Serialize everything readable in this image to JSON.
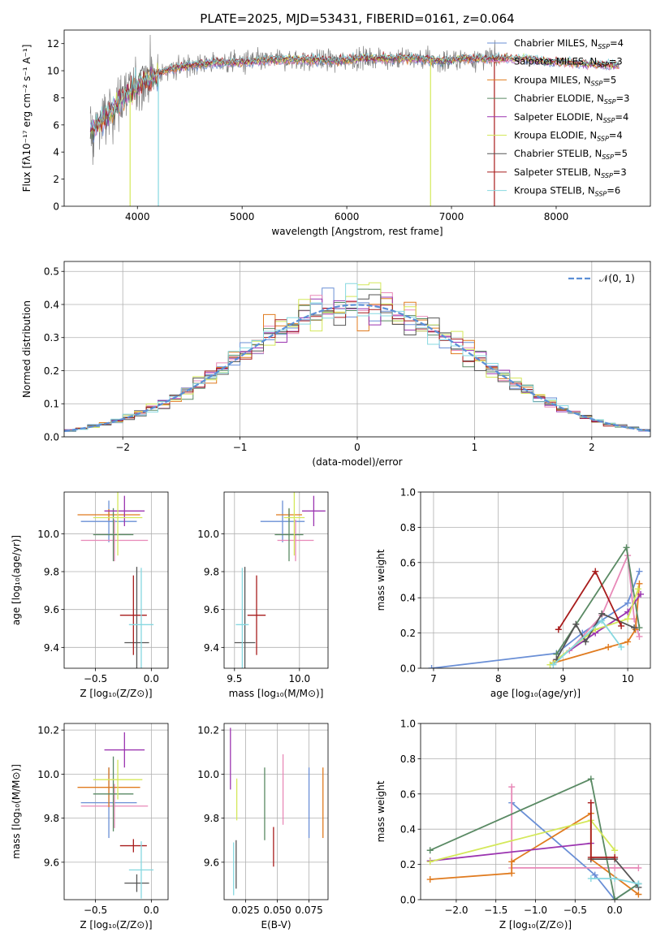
{
  "colors": {
    "chabrier_miles": "#6a8fd6",
    "salpeter_miles": "#e889b8",
    "kroupa_miles": "#e07b1f",
    "chabrier_elodie": "#5a8a64",
    "salpeter_elodie": "#9b34b0",
    "kroupa_elodie": "#d4e85a",
    "chabrier_stelib": "#555555",
    "salpeter_stelib": "#a81c1c",
    "kroupa_stelib": "#86d8e0",
    "spectrum": "#808080",
    "gaussian": "#5b8fd6"
  },
  "chart_data": [
    {
      "id": "spectrum",
      "type": "line",
      "title": "PLATE=2025, MJD=53431, FIBERID=0161, z=0.064",
      "xlabel": "wavelength [Angstrom, rest frame]",
      "ylabel": "Flux [fλ10⁻¹⁷ erg cm⁻² s⁻¹ A⁻¹]",
      "xlim": [
        3300,
        8900
      ],
      "ylim": [
        0,
        13
      ],
      "xticks": [
        4000,
        5000,
        6000,
        7000,
        8000
      ],
      "yticks": [
        0,
        2,
        4,
        6,
        8,
        10,
        12
      ],
      "grid": false,
      "legend_position": "right",
      "legend": [
        {
          "key": "chabrier_miles",
          "label": "Chabrier MILES, N",
          "sub": "SSP",
          "suffix": "=4"
        },
        {
          "key": "salpeter_miles",
          "label": "Salpeter MILES, N",
          "sub": "SSP",
          "suffix": "=3"
        },
        {
          "key": "kroupa_miles",
          "label": "Kroupa MILES, N",
          "sub": "SSP",
          "suffix": "=5"
        },
        {
          "key": "chabrier_elodie",
          "label": "Chabrier ELODIE, N",
          "sub": "SSP",
          "suffix": "=3"
        },
        {
          "key": "salpeter_elodie",
          "label": "Salpeter ELODIE, N",
          "sub": "SSP",
          "suffix": "=4"
        },
        {
          "key": "kroupa_elodie",
          "label": "Kroupa ELODIE, N",
          "sub": "SSP",
          "suffix": "=4"
        },
        {
          "key": "chabrier_stelib",
          "label": "Chabrier STELIB, N",
          "sub": "SSP",
          "suffix": "=5"
        },
        {
          "key": "salpeter_stelib",
          "label": "Salpeter STELIB, N",
          "sub": "SSP",
          "suffix": "=3"
        },
        {
          "key": "kroupa_stelib",
          "label": "Kroupa STELIB, N",
          "sub": "SSP",
          "suffix": "=6"
        }
      ],
      "continuum": {
        "x": [
          3550,
          3650,
          3750,
          3850,
          3950,
          4050,
          4150,
          4300,
          4500,
          4700,
          4900,
          5100,
          5300,
          5500,
          5700,
          5900,
          6100,
          6300,
          6500,
          6700,
          6900,
          7100,
          7300,
          7500,
          7700,
          7900,
          8100,
          8300,
          8500,
          8600
        ],
        "y": [
          5.5,
          6.3,
          7.0,
          7.9,
          8.6,
          9.2,
          9.6,
          10.1,
          10.4,
          10.6,
          10.6,
          10.7,
          10.8,
          10.8,
          10.8,
          10.7,
          10.9,
          10.9,
          10.9,
          10.9,
          10.7,
          10.9,
          10.9,
          10.9,
          10.9,
          10.7,
          10.6,
          10.5,
          10.4,
          10.4
        ]
      },
      "observed_x_range": [
        3550,
        7450
      ],
      "model_x_range": [
        3550,
        8600
      ],
      "dips": [
        {
          "model": "kroupa_elodie",
          "x": 3930,
          "y": 0
        },
        {
          "model": "kroupa_stelib",
          "x": 4200,
          "y": 0
        },
        {
          "model": "kroupa_elodie",
          "x": 6800,
          "y": 0
        },
        {
          "model": "salpeter_stelib",
          "x": 7410,
          "y": 0
        }
      ]
    },
    {
      "id": "residuals",
      "type": "step",
      "xlabel": "(data-model)/error",
      "ylabel": "Normed distribution",
      "xlim": [
        -2.5,
        2.5
      ],
      "ylim": [
        0,
        0.53
      ],
      "xticks": [
        -2,
        -1,
        0,
        1,
        2
      ],
      "yticks": [
        0.0,
        0.1,
        0.2,
        0.3,
        0.4,
        0.5
      ],
      "grid": true,
      "legend_position": "top-right",
      "legend_label": "𝒩(0, 1)",
      "bins": {
        "start": -2.5,
        "width": 0.1,
        "count": 50
      }
    },
    {
      "id": "age-vs-z",
      "type": "errorbar",
      "xlabel": "Z [log₁₀(Z/Z⊙)]",
      "ylabel": "age  [log₁₀(age/yr)]",
      "xlim": [
        -0.78,
        0.15
      ],
      "ylim": [
        9.29,
        10.22
      ],
      "xticks": [
        -0.5,
        0.0
      ],
      "yticks": [
        9.4,
        9.6,
        9.8,
        10.0
      ],
      "grid": true,
      "points": [
        {
          "key": "chabrier_miles",
          "x": -0.38,
          "y": 10.065,
          "xerr": 0.25,
          "yerr": 0.11
        },
        {
          "key": "salpeter_miles",
          "x": -0.33,
          "y": 9.965,
          "xerr": 0.3,
          "yerr": 0.11
        },
        {
          "key": "kroupa_miles",
          "x": -0.38,
          "y": 10.1,
          "xerr": 0.28,
          "yerr": 0.03
        },
        {
          "key": "chabrier_elodie",
          "x": -0.34,
          "y": 9.995,
          "xerr": 0.18,
          "yerr": 0.14
        },
        {
          "key": "salpeter_elodie",
          "x": -0.24,
          "y": 10.12,
          "xerr": 0.18,
          "yerr": 0.08
        },
        {
          "key": "kroupa_elodie",
          "x": -0.3,
          "y": 10.085,
          "xerr": 0.22,
          "yerr": 0.2
        },
        {
          "key": "chabrier_stelib",
          "x": -0.13,
          "y": 9.425,
          "xerr": 0.11,
          "yerr": 0.4
        },
        {
          "key": "salpeter_stelib",
          "x": -0.16,
          "y": 9.57,
          "xerr": 0.12,
          "yerr": 0.21
        },
        {
          "key": "kroupa_stelib",
          "x": -0.09,
          "y": 9.52,
          "xerr": 0.11,
          "yerr": 0.3
        }
      ]
    },
    {
      "id": "age-vs-mass",
      "type": "errorbar",
      "xlabel": "mass [log₁₀(M/M⊙)]",
      "ylabel": "",
      "xlim": [
        9.42,
        10.22
      ],
      "ylim": [
        9.29,
        10.22
      ],
      "xticks": [
        9.5,
        10.0
      ],
      "yticks": [
        9.4,
        9.6,
        9.8,
        10.0
      ],
      "grid": true,
      "points": [
        {
          "key": "chabrier_miles",
          "x": 9.87,
          "y": 10.065,
          "xerr": 0.17,
          "yerr": 0.11
        },
        {
          "key": "salpeter_miles",
          "x": 9.97,
          "y": 9.965,
          "xerr": 0.14,
          "yerr": 0.11
        },
        {
          "key": "kroupa_miles",
          "x": 9.92,
          "y": 10.1,
          "xerr": 0.1,
          "yerr": 0.03
        },
        {
          "key": "chabrier_elodie",
          "x": 9.92,
          "y": 9.995,
          "xerr": 0.11,
          "yerr": 0.14
        },
        {
          "key": "salpeter_elodie",
          "x": 10.11,
          "y": 10.12,
          "xerr": 0.09,
          "yerr": 0.08
        },
        {
          "key": "kroupa_elodie",
          "x": 9.96,
          "y": 10.085,
          "xerr": 0.08,
          "yerr": 0.2
        },
        {
          "key": "chabrier_stelib",
          "x": 9.58,
          "y": 9.425,
          "xerr": 0.08,
          "yerr": 0.4
        },
        {
          "key": "salpeter_stelib",
          "x": 9.67,
          "y": 9.57,
          "xerr": 0.07,
          "yerr": 0.21
        },
        {
          "key": "kroupa_stelib",
          "x": 9.56,
          "y": 9.52,
          "xerr": 0.05,
          "yerr": 0.3
        }
      ]
    },
    {
      "id": "weight-vs-age",
      "type": "line",
      "xlabel": "age  [log₁₀(age/yr)]",
      "ylabel": "mass weight",
      "xlim": [
        6.8,
        10.35
      ],
      "ylim": [
        0,
        1.0
      ],
      "xticks": [
        7,
        8,
        9,
        10
      ],
      "yticks": [
        0.0,
        0.2,
        0.4,
        0.6,
        0.8,
        1.0
      ],
      "grid": true,
      "series": [
        {
          "key": "chabrier_miles",
          "x": [
            6.97,
            8.9,
            9.3,
            10.0,
            10.18
          ],
          "y": [
            0.0,
            0.085,
            0.2,
            0.37,
            0.55
          ]
        },
        {
          "key": "salpeter_miles",
          "x": [
            9.1,
            9.6,
            10.0,
            10.1,
            10.18
          ],
          "y": [
            0.1,
            0.3,
            0.64,
            0.28,
            0.18
          ]
        },
        {
          "key": "kroupa_miles",
          "x": [
            8.85,
            9.7,
            10.0,
            10.12,
            10.18
          ],
          "y": [
            0.03,
            0.12,
            0.15,
            0.22,
            0.48
          ]
        },
        {
          "key": "chabrier_elodie",
          "x": [
            8.9,
            9.98,
            10.18
          ],
          "y": [
            0.08,
            0.685,
            0.23
          ]
        },
        {
          "key": "salpeter_elodie",
          "x": [
            8.9,
            9.5,
            10.0,
            10.2
          ],
          "y": [
            0.05,
            0.2,
            0.32,
            0.42
          ]
        },
        {
          "key": "kroupa_elodie",
          "x": [
            8.8,
            9.5,
            10.0,
            10.16
          ],
          "y": [
            0.02,
            0.22,
            0.28,
            0.45
          ]
        },
        {
          "key": "chabrier_stelib",
          "x": [
            8.9,
            9.2,
            9.35,
            9.6,
            10.1
          ],
          "y": [
            0.05,
            0.25,
            0.15,
            0.31,
            0.23
          ]
        },
        {
          "key": "salpeter_stelib",
          "x": [
            8.93,
            9.5,
            9.9
          ],
          "y": [
            0.22,
            0.55,
            0.24
          ]
        },
        {
          "key": "kroupa_stelib",
          "x": [
            8.85,
            9.6,
            9.9
          ],
          "y": [
            0.02,
            0.27,
            0.12
          ]
        }
      ]
    },
    {
      "id": "mass-vs-z",
      "type": "errorbar",
      "xlabel": "Z [log₁₀(Z/Z⊙)]",
      "ylabel": "mass [log₁₀(M/M⊙)]",
      "xlim": [
        -0.78,
        0.15
      ],
      "ylim": [
        9.43,
        10.23
      ],
      "xticks": [
        -0.5,
        0.0
      ],
      "yticks": [
        9.6,
        9.8,
        10.0,
        10.2
      ],
      "grid": true,
      "points": [
        {
          "key": "chabrier_miles",
          "x": -0.38,
          "y": 9.87,
          "xerr": 0.25,
          "yerr": 0.16
        },
        {
          "key": "salpeter_miles",
          "x": -0.33,
          "y": 9.855,
          "xerr": 0.3,
          "yerr": 0.1
        },
        {
          "key": "kroupa_miles",
          "x": -0.38,
          "y": 9.94,
          "xerr": 0.28,
          "yerr": 0.09
        },
        {
          "key": "chabrier_elodie",
          "x": -0.34,
          "y": 9.91,
          "xerr": 0.18,
          "yerr": 0.17
        },
        {
          "key": "salpeter_elodie",
          "x": -0.24,
          "y": 10.11,
          "xerr": 0.18,
          "yerr": 0.08
        },
        {
          "key": "kroupa_elodie",
          "x": -0.3,
          "y": 9.975,
          "xerr": 0.22,
          "yerr": 0.09
        },
        {
          "key": "chabrier_stelib",
          "x": -0.13,
          "y": 9.505,
          "xerr": 0.11,
          "yerr": 0.04
        },
        {
          "key": "salpeter_stelib",
          "x": -0.16,
          "y": 9.675,
          "xerr": 0.12,
          "yerr": 0.03
        },
        {
          "key": "kroupa_stelib",
          "x": -0.09,
          "y": 9.565,
          "xerr": 0.11,
          "yerr": 0.13
        }
      ]
    },
    {
      "id": "mass-vs-ebv",
      "type": "errorbar",
      "xlabel": "E(B-V)",
      "ylabel": "",
      "xlim": [
        0.008,
        0.09
      ],
      "ylim": [
        9.43,
        10.23
      ],
      "xticks": [
        0.025,
        0.05,
        0.075
      ],
      "xtick_labels": [
        "0.025",
        "0.050",
        "0.075"
      ],
      "yticks": [
        9.6,
        9.8,
        10.0,
        10.2
      ],
      "grid": true,
      "points": [
        {
          "key": "chabrier_miles",
          "x": 0.075,
          "y": 9.87,
          "xerr": 0,
          "yerr": 0.16
        },
        {
          "key": "salpeter_miles",
          "x": 0.0545,
          "y": 9.93,
          "xerr": 0,
          "yerr": 0.16
        },
        {
          "key": "kroupa_miles",
          "x": 0.086,
          "y": 9.87,
          "xerr": 0,
          "yerr": 0.16
        },
        {
          "key": "chabrier_elodie",
          "x": 0.04,
          "y": 9.865,
          "xerr": 0,
          "yerr": 0.165
        },
        {
          "key": "salpeter_elodie",
          "x": 0.013,
          "y": 10.07,
          "xerr": 0,
          "yerr": 0.14
        },
        {
          "key": "kroupa_elodie",
          "x": 0.018,
          "y": 9.885,
          "xerr": 0,
          "yerr": 0.095
        },
        {
          "key": "chabrier_stelib",
          "x": 0.0175,
          "y": 9.59,
          "xerr": 0,
          "yerr": 0.11
        },
        {
          "key": "salpeter_stelib",
          "x": 0.047,
          "y": 9.67,
          "xerr": 0,
          "yerr": 0.09
        },
        {
          "key": "kroupa_stelib",
          "x": 0.0155,
          "y": 9.57,
          "xerr": 0,
          "yerr": 0.12
        }
      ]
    },
    {
      "id": "weight-vs-z",
      "type": "line",
      "xlabel": "Z [log₁₀(Z/Z⊙)]",
      "ylabel": "mass weight",
      "xlim": [
        -2.45,
        0.45
      ],
      "ylim": [
        0,
        1.0
      ],
      "xticks": [
        -2.0,
        -1.5,
        -1.0,
        -0.5,
        0.0
      ],
      "yticks": [
        0.0,
        0.2,
        0.4,
        0.6,
        0.8,
        1.0
      ],
      "grid": true,
      "series": [
        {
          "key": "chabrier_miles",
          "x": [
            -1.3,
            -0.25,
            0.0,
            0.3
          ],
          "y": [
            0.55,
            0.14,
            0.0,
            0.09
          ]
        },
        {
          "key": "salpeter_miles",
          "x": [
            -1.3,
            -1.3,
            0.0,
            0.3
          ],
          "y": [
            0.64,
            0.18,
            0.18,
            0.18
          ]
        },
        {
          "key": "kroupa_miles",
          "x": [
            -2.33,
            -1.3,
            -1.3,
            -0.3,
            -0.3,
            0.3
          ],
          "y": [
            0.115,
            0.15,
            0.215,
            0.49,
            0.23,
            0.03
          ]
        },
        {
          "key": "chabrier_elodie",
          "x": [
            -2.33,
            -0.3,
            0.0,
            0.3
          ],
          "y": [
            0.28,
            0.685,
            0.0,
            0.09
          ]
        },
        {
          "key": "salpeter_elodie",
          "x": [
            -2.33,
            -0.3
          ],
          "y": [
            0.22,
            0.32
          ]
        },
        {
          "key": "kroupa_elodie",
          "x": [
            -2.33,
            -0.3,
            0.0
          ],
          "y": [
            0.215,
            0.45,
            0.28
          ]
        },
        {
          "key": "chabrier_stelib",
          "x": [
            -0.3,
            0.0,
            0.3
          ],
          "y": [
            0.23,
            0.23,
            0.07
          ]
        },
        {
          "key": "salpeter_stelib",
          "x": [
            -0.3,
            -0.3,
            0.0
          ],
          "y": [
            0.55,
            0.24,
            0.24
          ]
        },
        {
          "key": "kroupa_stelib",
          "x": [
            -0.3,
            0.0,
            0.3
          ],
          "y": [
            0.12,
            0.12,
            0.09
          ]
        }
      ]
    }
  ]
}
